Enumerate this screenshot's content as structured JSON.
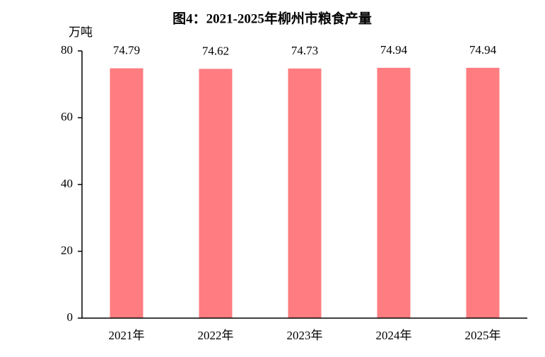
{
  "chart_data": {
    "type": "bar",
    "title": "图4：2021-2025年柳州市粮食产量",
    "y_label": "万吨",
    "categories": [
      "2021年",
      "2022年",
      "2023年",
      "2024年",
      "2025年"
    ],
    "values": [
      74.79,
      74.62,
      74.73,
      74.94,
      74.94
    ],
    "color": "#ff7c80",
    "ylim": [
      0,
      80
    ],
    "yticks": [
      0,
      20,
      40,
      60,
      80
    ],
    "grid": false
  }
}
